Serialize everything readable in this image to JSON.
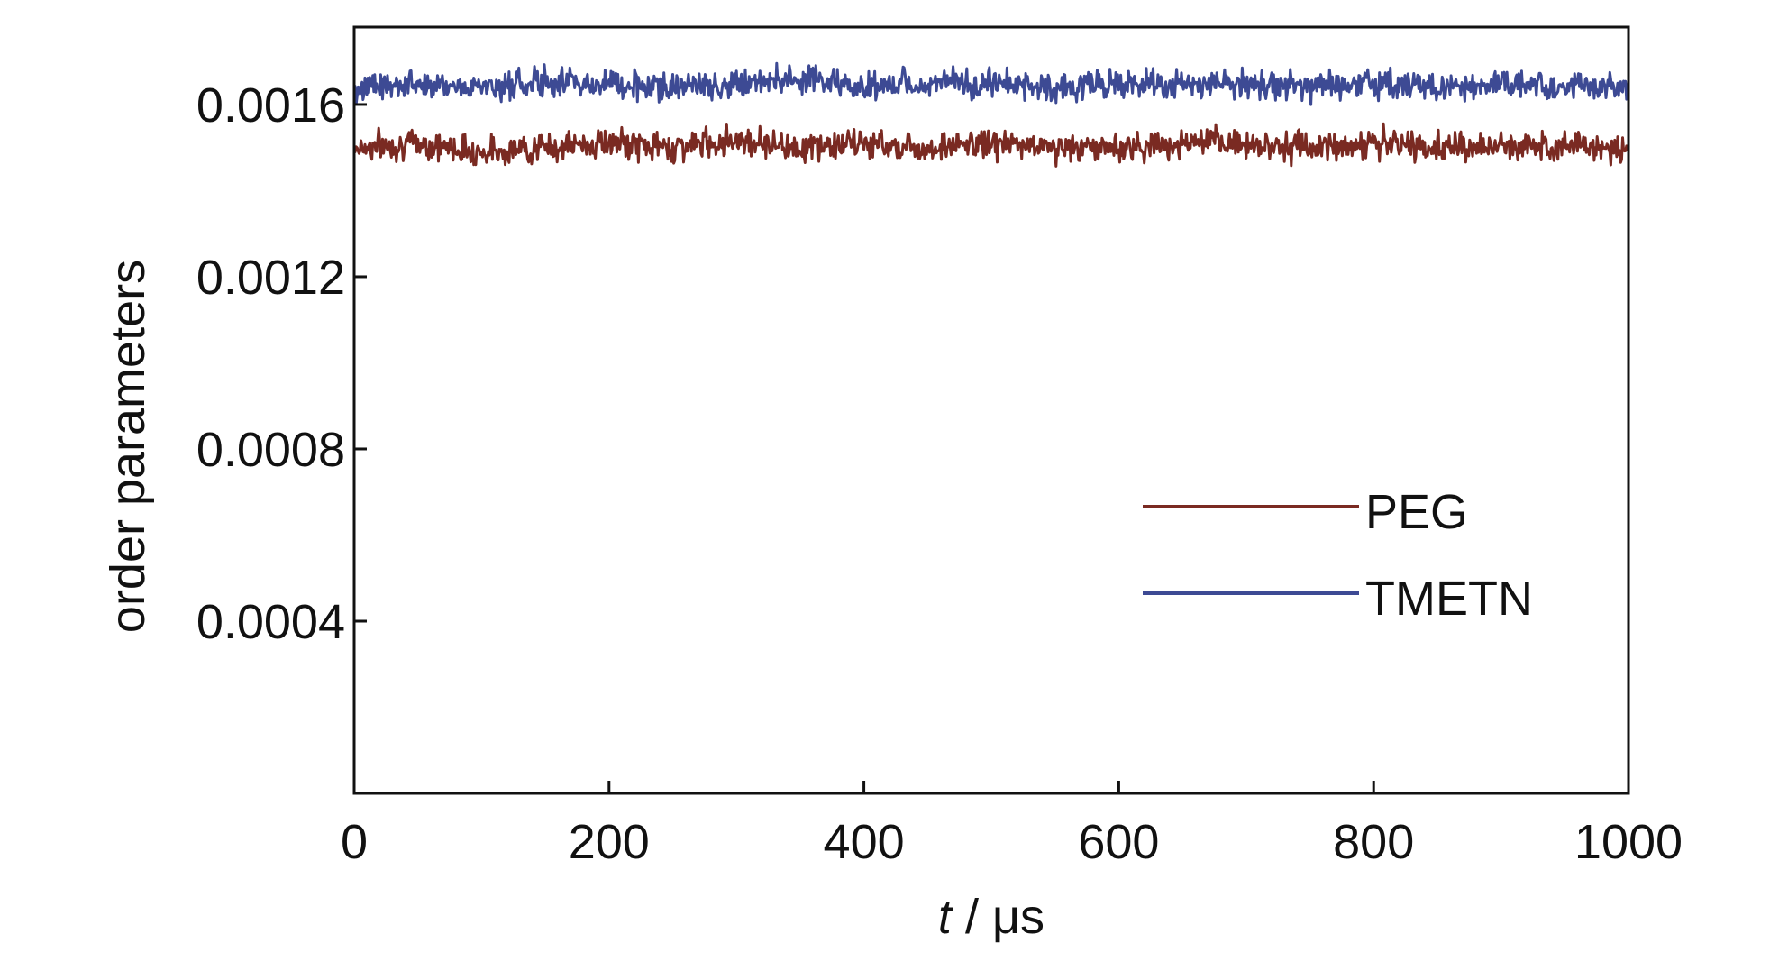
{
  "chart_data": {
    "type": "line",
    "xlabel_var": "t",
    "xlabel_unit": " / μs",
    "ylabel": "order parameters",
    "xlim": [
      0,
      1000
    ],
    "ylim": [
      0,
      0.00178
    ],
    "xticks": [
      0,
      200,
      400,
      600,
      800,
      1000
    ],
    "xtick_labels": [
      "0",
      "200",
      "400",
      "600",
      "800",
      "1000"
    ],
    "yticks": [
      0.0004,
      0.0008,
      0.0012,
      0.0016
    ],
    "ytick_labels": [
      "0.0004",
      "0.0008",
      "0.0012",
      "0.0016"
    ],
    "grid": false,
    "legend_position": "center-right",
    "series": [
      {
        "name": "PEG",
        "color": "#7a2a22",
        "x": [
          0,
          50,
          100,
          150,
          200,
          250,
          300,
          350,
          400,
          450,
          500,
          550,
          600,
          650,
          700,
          750,
          800,
          850,
          900,
          950,
          1000
        ],
        "y": [
          0.0015,
          0.00151,
          0.00149,
          0.0015,
          0.00151,
          0.0015,
          0.00152,
          0.0015,
          0.00151,
          0.0015,
          0.00151,
          0.0015,
          0.0015,
          0.00151,
          0.00151,
          0.0015,
          0.00151,
          0.0015,
          0.0015,
          0.00151,
          0.00149
        ],
        "fluctuation": 3e-05
      },
      {
        "name": "TMETN",
        "color": "#3d4a94",
        "x": [
          0,
          50,
          100,
          150,
          200,
          250,
          300,
          350,
          400,
          450,
          500,
          550,
          600,
          650,
          700,
          750,
          800,
          850,
          900,
          950,
          1000
        ],
        "y": [
          0.00164,
          0.00165,
          0.00164,
          0.00165,
          0.00165,
          0.00164,
          0.00165,
          0.00166,
          0.00164,
          0.00165,
          0.00165,
          0.00164,
          0.00165,
          0.00164,
          0.00165,
          0.00164,
          0.00165,
          0.00164,
          0.00165,
          0.00164,
          0.00164
        ],
        "fluctuation": 3e-05
      }
    ]
  }
}
